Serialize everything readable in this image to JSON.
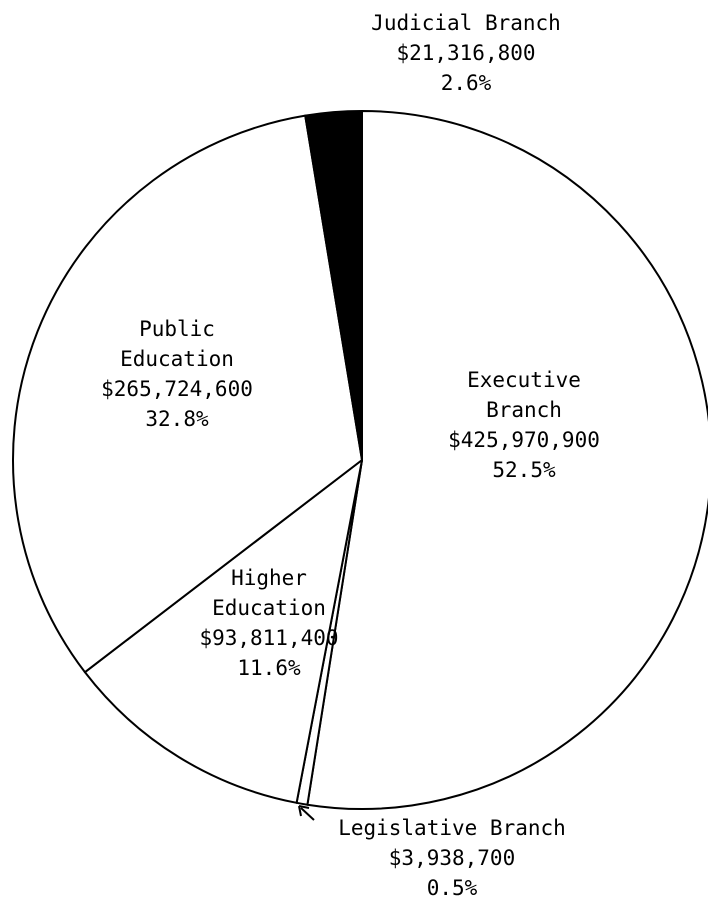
{
  "chart_data": {
    "type": "pie",
    "title": "",
    "slices": [
      {
        "label_lines": [
          "Executive",
          "Branch"
        ],
        "amount": "$425,970,900",
        "percent_text": "52.5%",
        "value": 52.5,
        "fill": "#ffffff"
      },
      {
        "label_lines": [
          "Legislative Branch"
        ],
        "amount": "$3,938,700",
        "percent_text": "0.5%",
        "value": 0.5,
        "fill": "#ffffff"
      },
      {
        "label_lines": [
          "Higher",
          "Education"
        ],
        "amount": "$93,811,400",
        "percent_text": "11.6%",
        "value": 11.6,
        "fill": "#ffffff"
      },
      {
        "label_lines": [
          "Public",
          "Education"
        ],
        "amount": "$265,724,600",
        "percent_text": "32.8%",
        "value": 32.8,
        "fill": "#ffffff"
      },
      {
        "label_lines": [
          "Judicial Branch"
        ],
        "amount": "$21,316,800",
        "percent_text": "2.6%",
        "value": 2.6,
        "fill": "#000000"
      }
    ],
    "start_at": "top",
    "direction": "clockwise",
    "callout_arrow_slice": "Legislative Branch"
  }
}
